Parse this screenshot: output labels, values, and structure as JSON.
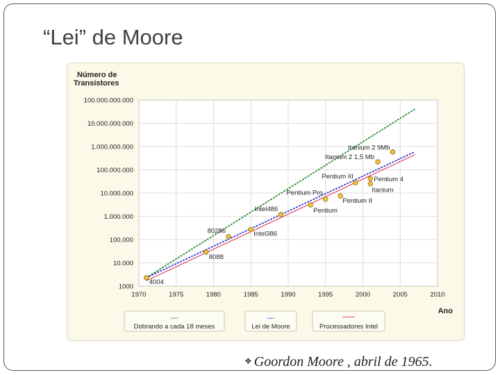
{
  "slide": {
    "title": "“Lei” de Moore",
    "caption": "Goordon Moore , abril de 1965.",
    "caption_bullet_icon": "diamond-bullet-icon"
  },
  "colors": {
    "panel_bg": "#fbf9e8",
    "grid": "#d4d4d4",
    "doubling_line": "#2e8b2e",
    "moore_line": "#3a3ad8",
    "intel_line": "#e23a5a",
    "point_fill": "#f2c33a",
    "point_stroke": "#8a6d10"
  },
  "chart_data": {
    "type": "scatter",
    "title": "",
    "ylabel": "Número de Transistores",
    "xlabel": "Ano",
    "y_scale": "log",
    "xlim": [
      1970,
      2010
    ],
    "ylim": [
      1000,
      100000000000
    ],
    "x_ticks": [
      1970,
      1975,
      1980,
      1985,
      1990,
      1995,
      2000,
      2005,
      2010
    ],
    "y_ticks": [
      {
        "value": 1000,
        "label": "1000"
      },
      {
        "value": 10000,
        "label": "10.000"
      },
      {
        "value": 100000,
        "label": "100.000"
      },
      {
        "value": 1000000,
        "label": "1.000.000"
      },
      {
        "value": 10000000,
        "label": "10.000.000"
      },
      {
        "value": 100000000,
        "label": "100.000.000"
      },
      {
        "value": 1000000000,
        "label": "1.000.000.000"
      },
      {
        "value": 10000000000,
        "label": "10.000.000.000"
      },
      {
        "value": 100000000000,
        "label": "100.000.000.000"
      }
    ],
    "grid": true,
    "points": [
      {
        "year": 1971,
        "transistors": 2300,
        "label": "4004"
      },
      {
        "year": 1979,
        "transistors": 29000,
        "label": "8088"
      },
      {
        "year": 1982,
        "transistors": 134000,
        "label": "80286"
      },
      {
        "year": 1985,
        "transistors": 275000,
        "label": "Intel386"
      },
      {
        "year": 1989,
        "transistors": 1200000,
        "label": "Intel486"
      },
      {
        "year": 1993,
        "transistors": 3100000,
        "label": "Pentium"
      },
      {
        "year": 1995,
        "transistors": 5500000,
        "label": "Pentium Pro"
      },
      {
        "year": 1997,
        "transistors": 7500000,
        "label": "Pentium II"
      },
      {
        "year": 1999,
        "transistors": 28000000,
        "label": "Pentium III"
      },
      {
        "year": 2001,
        "transistors": 42000000,
        "label": "Pentium 4"
      },
      {
        "year": 2001,
        "transistors": 25000000,
        "label": "Itanium"
      },
      {
        "year": 2002,
        "transistors": 220000000,
        "label": "Itanium 2 1,5 Mb"
      },
      {
        "year": 2004,
        "transistors": 592000000,
        "label": "Itanium 2 9Mb"
      }
    ],
    "series": [
      {
        "name": "Dobrando a cada 18 meses",
        "style": "dotted",
        "x": [
          1971,
          2007
        ],
        "y": [
          2300,
          41000000000
        ]
      },
      {
        "name": "Lei de Moore",
        "style": "dotted",
        "x": [
          1971,
          2007
        ],
        "y": [
          2300,
          600000000
        ]
      },
      {
        "name": "Processadores Intel",
        "style": "solid",
        "x": [
          1971,
          2007
        ],
        "y": [
          1700,
          450000000
        ]
      }
    ],
    "legend": [
      {
        "marker": "....",
        "label": "Dobrando a cada 18 meses"
      },
      {
        "marker": "....",
        "label": "Lei de Moore"
      },
      {
        "marker": "——",
        "label": "Processadores Intel"
      }
    ],
    "legend_position": "bottom"
  }
}
